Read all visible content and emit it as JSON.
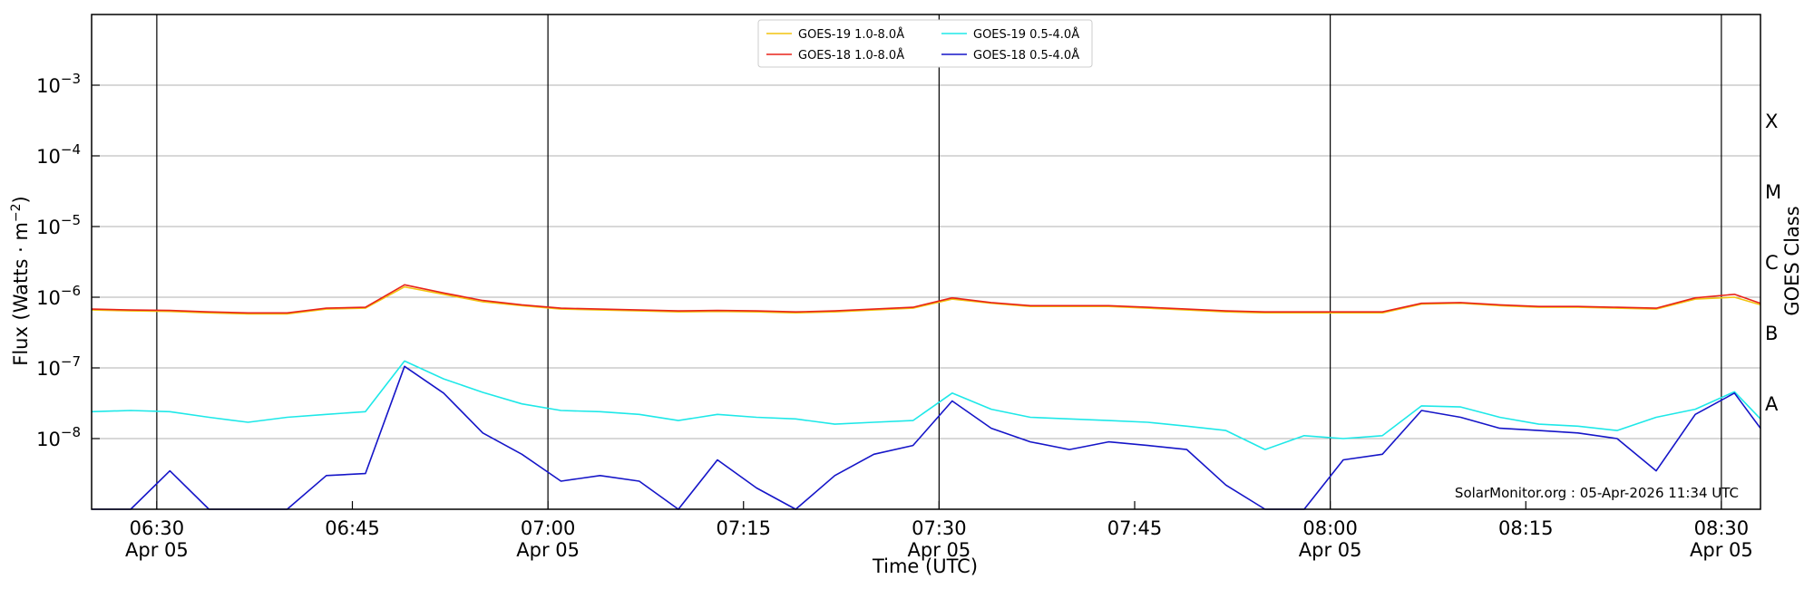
{
  "chart_data": {
    "type": "line",
    "title": "",
    "xlabel": "Time (UTC)",
    "ylabel": "Flux (Watts · m",
    "ylabel_sup": "−2",
    "ylabel_close": ")",
    "right_ylabel": "GOES Class",
    "y_scale": "log",
    "ylim": [
      1e-09,
      0.01
    ],
    "y_ticks": [
      {
        "value": 1e-08,
        "base": "10",
        "exp": "−8"
      },
      {
        "value": 1e-07,
        "base": "10",
        "exp": "−7"
      },
      {
        "value": 1e-06,
        "base": "10",
        "exp": "−6"
      },
      {
        "value": 1e-05,
        "base": "10",
        "exp": "−5"
      },
      {
        "value": 0.0001,
        "base": "10",
        "exp": "−4"
      },
      {
        "value": 0.001,
        "base": "10",
        "exp": "−3"
      }
    ],
    "goes_classes": [
      {
        "label": "A",
        "value": 1e-08
      },
      {
        "label": "B",
        "value": 1e-07
      },
      {
        "label": "C",
        "value": 1e-06
      },
      {
        "label": "M",
        "value": 1e-05
      },
      {
        "label": "X",
        "value": 0.0001
      }
    ],
    "xlim": [
      "06:25",
      "08:33"
    ],
    "x_ticks": [
      {
        "time": "06:30",
        "date": "Apr 05"
      },
      {
        "time": "06:45",
        "date": ""
      },
      {
        "time": "07:00",
        "date": "Apr 05"
      },
      {
        "time": "07:15",
        "date": ""
      },
      {
        "time": "07:30",
        "date": "Apr 05"
      },
      {
        "time": "07:45",
        "date": ""
      },
      {
        "time": "08:00",
        "date": "Apr 05"
      },
      {
        "time": "08:15",
        "date": ""
      },
      {
        "time": "08:30",
        "date": "Apr 05"
      }
    ],
    "vlines": [
      "06:30",
      "07:00",
      "07:30",
      "08:00",
      "08:30"
    ],
    "grid": "horizontal",
    "legend_position": "top-center",
    "credit": "SolarMonitor.org : 05-Apr-2026 11:34 UTC",
    "x": [
      "06:25",
      "06:28",
      "06:31",
      "06:34",
      "06:37",
      "06:40",
      "06:43",
      "06:46",
      "06:49",
      "06:52",
      "06:55",
      "06:58",
      "07:01",
      "07:04",
      "07:07",
      "07:10",
      "07:13",
      "07:16",
      "07:19",
      "07:22",
      "07:25",
      "07:28",
      "07:31",
      "07:34",
      "07:37",
      "07:40",
      "07:43",
      "07:46",
      "07:49",
      "07:52",
      "07:55",
      "07:58",
      "08:01",
      "08:04",
      "08:07",
      "08:10",
      "08:13",
      "08:16",
      "08:19",
      "08:22",
      "08:25",
      "08:28",
      "08:31",
      "08:33"
    ],
    "series": [
      {
        "name": "GOES-19 1.0-8.0",
        "name_sym": "Å",
        "color": "#f2c40f",
        "values": [
          6.6e-07,
          6.4e-07,
          6.3e-07,
          6e-07,
          5.8e-07,
          5.8e-07,
          6.8e-07,
          7e-07,
          1.4e-06,
          1.1e-06,
          8.6e-07,
          7.6e-07,
          6.8e-07,
          6.6e-07,
          6.4e-07,
          6.2e-07,
          6.3e-07,
          6.2e-07,
          6e-07,
          6.2e-07,
          6.6e-07,
          7e-07,
          9.4e-07,
          8.2e-07,
          7.4e-07,
          7.4e-07,
          7.4e-07,
          7e-07,
          6.6e-07,
          6.2e-07,
          6e-07,
          6e-07,
          6e-07,
          6e-07,
          8e-07,
          8.2e-07,
          7.6e-07,
          7.2e-07,
          7.2e-07,
          7e-07,
          6.8e-07,
          9.4e-07,
          1e-06,
          7.8e-07
        ]
      },
      {
        "name": "GOES-18 1.0-8.0",
        "name_sym": "Å",
        "color": "#e8231a",
        "values": [
          6.8e-07,
          6.6e-07,
          6.5e-07,
          6.2e-07,
          6e-07,
          6e-07,
          7e-07,
          7.2e-07,
          1.5e-06,
          1.15e-06,
          9e-07,
          7.8e-07,
          7e-07,
          6.8e-07,
          6.6e-07,
          6.4e-07,
          6.5e-07,
          6.4e-07,
          6.2e-07,
          6.4e-07,
          6.8e-07,
          7.2e-07,
          9.8e-07,
          8.4e-07,
          7.6e-07,
          7.6e-07,
          7.6e-07,
          7.2e-07,
          6.8e-07,
          6.4e-07,
          6.2e-07,
          6.2e-07,
          6.2e-07,
          6.2e-07,
          8.2e-07,
          8.4e-07,
          7.8e-07,
          7.4e-07,
          7.4e-07,
          7.2e-07,
          7e-07,
          9.8e-07,
          1.1e-06,
          8.2e-07
        ]
      },
      {
        "name": "GOES-19 0.5-4.0",
        "name_sym": "Å",
        "color": "#1ee8e8",
        "values": [
          2.4e-08,
          2.5e-08,
          2.4e-08,
          2e-08,
          1.7e-08,
          2e-08,
          2.2e-08,
          2.4e-08,
          1.25e-07,
          7e-08,
          4.5e-08,
          3.1e-08,
          2.5e-08,
          2.4e-08,
          2.2e-08,
          1.8e-08,
          2.2e-08,
          2e-08,
          1.9e-08,
          1.6e-08,
          1.7e-08,
          1.8e-08,
          4.4e-08,
          2.6e-08,
          2e-08,
          1.9e-08,
          1.8e-08,
          1.7e-08,
          1.5e-08,
          1.3e-08,
          7e-09,
          1.1e-08,
          1e-08,
          1.1e-08,
          2.9e-08,
          2.8e-08,
          2e-08,
          1.6e-08,
          1.5e-08,
          1.3e-08,
          2e-08,
          2.6e-08,
          4.6e-08,
          1.9e-08
        ]
      },
      {
        "name": "GOES-18 0.5-4.0",
        "name_sym": "Å",
        "color": "#1515c8",
        "values": [
          1e-09,
          1e-09,
          3.5e-09,
          1e-09,
          1e-09,
          1e-09,
          3e-09,
          3.2e-09,
          1.05e-07,
          4.4e-08,
          1.2e-08,
          6e-09,
          2.5e-09,
          3e-09,
          2.5e-09,
          1e-09,
          5e-09,
          2e-09,
          1e-09,
          3e-09,
          6e-09,
          8e-09,
          3.4e-08,
          1.4e-08,
          9e-09,
          7e-09,
          9e-09,
          8e-09,
          7e-09,
          2.2e-09,
          1e-09,
          1e-09,
          5e-09,
          6e-09,
          2.5e-08,
          2e-08,
          1.4e-08,
          1.3e-08,
          1.2e-08,
          1e-08,
          3.5e-09,
          2.2e-08,
          4.4e-08,
          1.4e-08
        ]
      }
    ]
  }
}
